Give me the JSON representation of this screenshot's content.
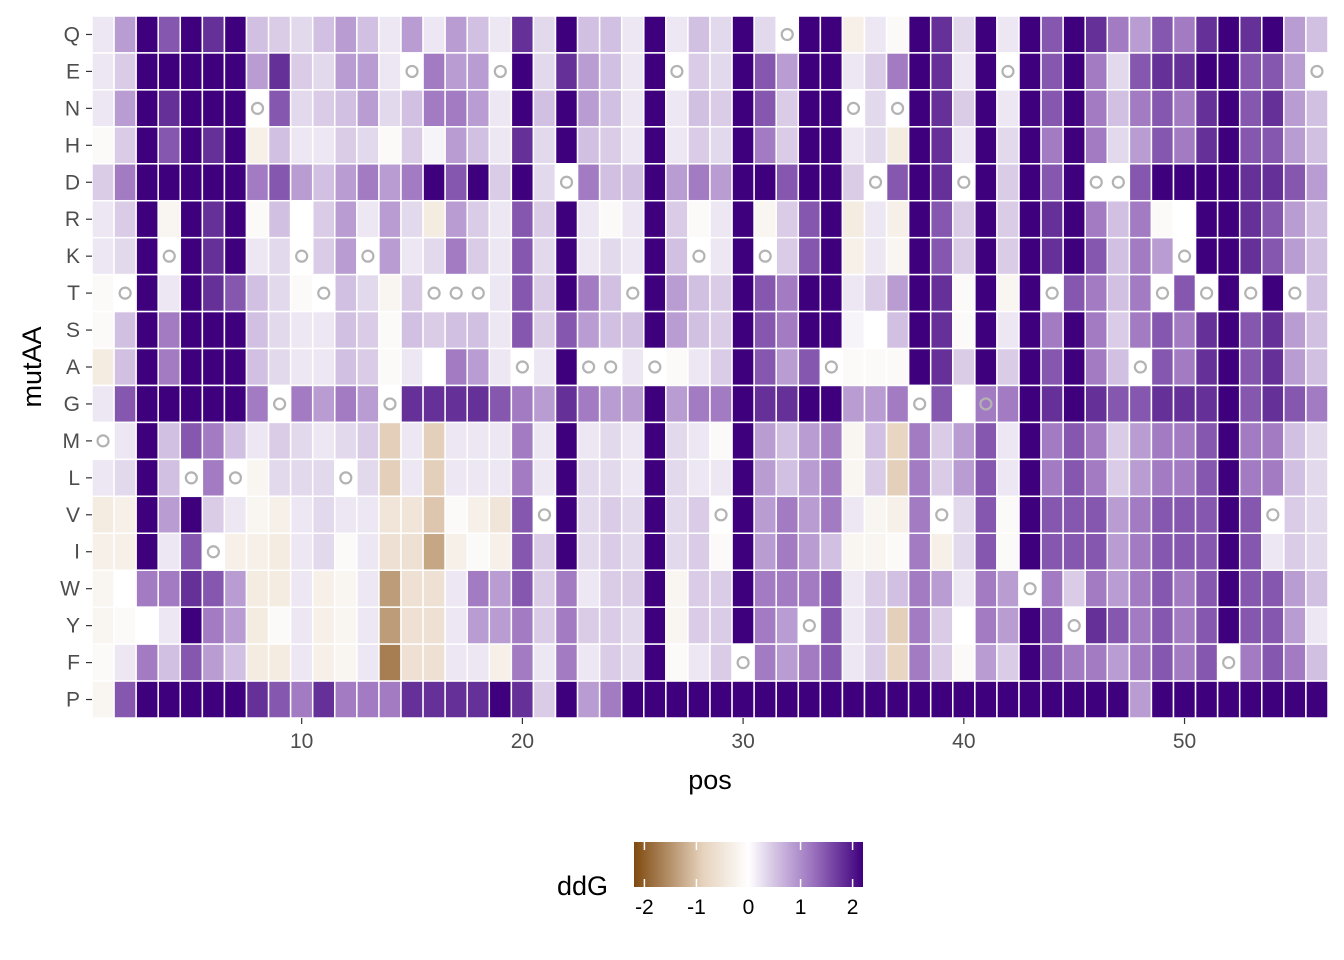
{
  "chart_data": {
    "type": "heatmap",
    "title": "",
    "xlabel": "pos",
    "ylabel": "mutAA",
    "x": [
      1,
      2,
      3,
      4,
      5,
      6,
      7,
      8,
      9,
      10,
      11,
      12,
      13,
      14,
      15,
      16,
      17,
      18,
      19,
      20,
      21,
      22,
      23,
      24,
      25,
      26,
      27,
      28,
      29,
      30,
      31,
      32,
      33,
      34,
      35,
      36,
      37,
      38,
      39,
      40,
      41,
      42,
      43,
      44,
      45,
      46,
      47,
      48,
      49,
      50,
      51,
      52,
      53,
      54,
      55,
      56
    ],
    "y": [
      "Q",
      "E",
      "N",
      "H",
      "D",
      "R",
      "K",
      "T",
      "S",
      "A",
      "G",
      "M",
      "L",
      "V",
      "I",
      "W",
      "Y",
      "F",
      "P"
    ],
    "x_ticks": [
      10,
      20,
      30,
      40,
      50
    ],
    "x_tick_labels": [
      "10",
      "20",
      "30",
      "40",
      "50"
    ],
    "xlim": [
      0.5,
      56.5
    ],
    "legend": {
      "title": "ddG",
      "placement": "bottom",
      "range": [
        -2.2,
        2.2
      ],
      "ticks": [
        -2,
        -1,
        0,
        1,
        2
      ],
      "tick_labels": [
        "-2",
        "-1",
        "0",
        "1",
        "2"
      ],
      "colors": [
        "#7f4a10",
        "#e6d2bd",
        "#ffffff",
        "#d9cbe6",
        "#9c73bf",
        "#3f007d"
      ]
    },
    "native_marker": "open circle at the wild-type residue of each position",
    "native_sequence": {
      "1": "M",
      "2": "T",
      "4": "K",
      "5": "L",
      "6": "I",
      "7": "L",
      "8": "N",
      "9": "G",
      "10": "K",
      "11": "T",
      "12": "L",
      "13": "K",
      "14": "G",
      "15": "E",
      "16": "T",
      "17": "T",
      "18": "T",
      "19": "E",
      "20": "A",
      "21": "V",
      "22": "D",
      "23": "A",
      "24": "A",
      "25": "T",
      "26": "A",
      "27": "E",
      "28": "K",
      "29": "V",
      "30": "F",
      "31": "K",
      "32": "Q",
      "33": "Y",
      "34": "A",
      "35": "N",
      "36": "D",
      "37": "N",
      "38": "G",
      "39": "V",
      "40": "D",
      "41": "G",
      "42": "E",
      "43": "W",
      "44": "T",
      "45": "Y",
      "46": "D",
      "47": "D",
      "48": "A",
      "49": "T",
      "50": "K",
      "51": "T",
      "52": "F",
      "53": "T",
      "54": "V",
      "55": "T",
      "56": "E"
    },
    "values": {
      "Q": [
        0.21,
        0.85,
        2.2,
        1.47,
        2.2,
        1.8,
        2.2,
        0.54,
        0.43,
        0.32,
        0.54,
        0.85,
        0.54,
        0.21,
        0.85,
        0.21,
        0.85,
        0.54,
        0.21,
        1.8,
        0.32,
        2.2,
        0.54,
        0.54,
        0.21,
        2.2,
        0.21,
        0.54,
        0.32,
        2.2,
        0.32,
        0.0,
        2.2,
        2.2,
        -0.3,
        0.21,
        -0.1,
        2.2,
        1.8,
        0.32,
        2.2,
        0.21,
        2.2,
        1.47,
        2.2,
        1.8,
        1.16,
        0.85,
        1.47,
        1.16,
        1.8,
        2.2,
        1.8,
        2.2,
        0.85,
        0.54
      ],
      "E": [
        0.21,
        0.43,
        2.2,
        2.2,
        2.2,
        2.2,
        2.2,
        0.85,
        1.8,
        0.43,
        0.32,
        0.85,
        0.85,
        0.21,
        0.0,
        1.16,
        0.85,
        0.85,
        0.0,
        2.2,
        0.32,
        1.8,
        0.85,
        0.54,
        0.21,
        2.2,
        0.0,
        0.43,
        0.32,
        2.2,
        1.47,
        0.85,
        2.2,
        2.2,
        0.21,
        0.43,
        1.16,
        2.2,
        1.8,
        0.21,
        2.2,
        0.0,
        2.2,
        1.47,
        2.2,
        1.16,
        0.32,
        1.47,
        1.8,
        1.8,
        2.2,
        2.2,
        1.47,
        1.47,
        0.85,
        0.0
      ],
      "N": [
        0.21,
        0.85,
        2.2,
        1.8,
        2.2,
        2.2,
        2.2,
        0.0,
        1.47,
        0.32,
        0.43,
        0.54,
        0.85,
        0.32,
        0.54,
        1.16,
        1.16,
        0.85,
        0.21,
        2.2,
        0.54,
        2.2,
        0.85,
        0.54,
        0.21,
        2.2,
        0.21,
        0.54,
        0.43,
        2.2,
        1.47,
        0.43,
        2.2,
        2.2,
        0.0,
        0.32,
        0.0,
        2.2,
        1.8,
        0.43,
        2.2,
        0.21,
        2.2,
        1.47,
        2.2,
        1.16,
        0.54,
        1.16,
        1.47,
        1.16,
        1.8,
        2.2,
        1.47,
        1.8,
        0.85,
        0.54
      ],
      "H": [
        -0.1,
        0.43,
        2.2,
        1.47,
        2.2,
        1.8,
        2.2,
        -0.3,
        0.54,
        0.21,
        0.21,
        0.43,
        0.32,
        -0.1,
        0.43,
        0.1,
        0.85,
        0.54,
        0.21,
        1.8,
        0.32,
        2.2,
        0.54,
        0.43,
        0.21,
        2.2,
        0.21,
        0.43,
        0.32,
        2.2,
        1.16,
        0.43,
        2.2,
        2.2,
        0.21,
        0.32,
        -0.4,
        2.2,
        1.8,
        0.21,
        2.2,
        0.32,
        2.2,
        1.16,
        2.2,
        1.16,
        0.32,
        0.85,
        1.47,
        1.16,
        1.8,
        2.2,
        1.47,
        1.47,
        0.85,
        0.54
      ],
      "D": [
        0.43,
        1.16,
        2.2,
        2.2,
        2.2,
        2.2,
        2.2,
        1.16,
        1.47,
        0.85,
        0.54,
        0.85,
        1.16,
        0.85,
        1.16,
        2.2,
        1.47,
        2.2,
        0.43,
        2.2,
        0.32,
        0.0,
        1.16,
        0.54,
        0.54,
        2.2,
        0.85,
        1.16,
        0.85,
        2.2,
        2.2,
        1.47,
        2.2,
        2.2,
        0.43,
        0.0,
        1.47,
        2.2,
        1.8,
        0.0,
        2.2,
        0.43,
        2.2,
        1.47,
        2.2,
        0.0,
        0.0,
        1.47,
        2.2,
        2.2,
        2.2,
        2.2,
        1.8,
        1.8,
        1.47,
        0.85
      ],
      "R": [
        0.21,
        0.43,
        2.2,
        -0.2,
        2.2,
        1.8,
        2.2,
        -0.1,
        0.54,
        0.0,
        0.43,
        0.85,
        0.21,
        0.85,
        0.32,
        -0.4,
        0.85,
        0.43,
        0.21,
        1.47,
        0.43,
        2.2,
        0.21,
        -0.1,
        0.21,
        2.2,
        0.43,
        -0.1,
        0.21,
        2.2,
        -0.2,
        0.43,
        1.47,
        2.2,
        -0.4,
        0.21,
        -0.3,
        2.2,
        1.47,
        0.43,
        2.2,
        0.43,
        2.2,
        1.8,
        2.2,
        1.16,
        0.54,
        1.16,
        -0.1,
        0.0,
        2.2,
        2.2,
        1.8,
        1.47,
        0.85,
        0.54
      ],
      "K": [
        0.21,
        0.32,
        2.2,
        0.0,
        2.2,
        1.8,
        2.2,
        0.21,
        0.32,
        0.0,
        0.43,
        0.85,
        0.0,
        0.85,
        0.21,
        0.32,
        1.16,
        0.43,
        0.21,
        1.47,
        0.32,
        2.2,
        0.21,
        0.32,
        0.21,
        2.2,
        0.54,
        0.0,
        0.21,
        2.2,
        0.0,
        0.43,
        1.47,
        2.2,
        -0.3,
        0.21,
        -0.2,
        2.2,
        1.47,
        0.43,
        2.2,
        0.43,
        2.2,
        1.8,
        2.2,
        1.47,
        0.54,
        1.16,
        0.85,
        0.0,
        2.2,
        2.2,
        1.8,
        1.47,
        0.85,
        0.54
      ],
      "T": [
        -0.1,
        0.0,
        2.2,
        0.21,
        2.2,
        1.8,
        1.47,
        0.54,
        0.32,
        -0.1,
        0.0,
        0.54,
        0.32,
        -0.2,
        0.43,
        0.0,
        0.0,
        0.0,
        0.21,
        1.47,
        0.43,
        2.2,
        1.16,
        0.54,
        0.0,
        2.2,
        0.85,
        0.54,
        0.43,
        2.2,
        1.47,
        1.16,
        2.2,
        2.2,
        0.21,
        0.43,
        0.85,
        2.2,
        1.8,
        -0.1,
        2.2,
        -0.2,
        2.2,
        0.0,
        1.47,
        1.16,
        0.54,
        1.16,
        0.0,
        1.47,
        0.0,
        2.2,
        0.0,
        2.2,
        0.0,
        0.54
      ],
      "S": [
        -0.1,
        0.54,
        2.2,
        1.16,
        2.2,
        2.2,
        2.2,
        0.54,
        0.32,
        0.21,
        0.21,
        0.54,
        0.43,
        -0.1,
        0.54,
        0.43,
        0.54,
        0.54,
        0.21,
        1.47,
        0.43,
        1.47,
        0.85,
        0.54,
        0.54,
        2.2,
        0.85,
        0.54,
        0.43,
        2.2,
        1.47,
        1.16,
        2.2,
        2.2,
        0.1,
        0.0,
        0.54,
        2.2,
        1.8,
        -0.1,
        2.2,
        0.21,
        2.2,
        1.16,
        2.2,
        1.16,
        0.43,
        1.16,
        1.47,
        1.16,
        1.8,
        2.2,
        1.47,
        1.8,
        0.85,
        0.54
      ],
      "A": [
        -0.4,
        0.54,
        2.2,
        1.16,
        2.2,
        2.2,
        2.2,
        0.54,
        0.32,
        0.21,
        0.21,
        0.54,
        0.43,
        -0.1,
        0.21,
        0.0,
        1.16,
        0.85,
        0.21,
        0.0,
        0.21,
        2.2,
        0.0,
        0.0,
        0.21,
        0.0,
        -0.1,
        0.21,
        0.43,
        2.2,
        1.47,
        0.85,
        1.47,
        0.0,
        -0.1,
        -0.1,
        -0.1,
        2.2,
        1.8,
        0.43,
        2.2,
        0.43,
        2.2,
        1.47,
        2.2,
        1.16,
        0.54,
        0.0,
        1.47,
        1.16,
        1.8,
        2.2,
        1.47,
        1.8,
        0.85,
        0.54
      ],
      "G": [
        0.21,
        1.47,
        2.2,
        2.2,
        2.2,
        2.2,
        2.2,
        1.16,
        0.0,
        1.16,
        0.85,
        1.16,
        0.85,
        0.0,
        1.8,
        1.8,
        1.8,
        1.8,
        1.47,
        1.16,
        0.85,
        1.8,
        1.16,
        0.85,
        0.85,
        2.2,
        0.85,
        1.16,
        1.16,
        2.2,
        1.8,
        1.8,
        2.2,
        2.2,
        0.85,
        0.85,
        1.16,
        0.0,
        1.47,
        0.0,
        1.16,
        1.16,
        2.2,
        1.8,
        2.2,
        1.8,
        1.47,
        1.47,
        1.8,
        1.8,
        1.8,
        2.2,
        1.47,
        1.8,
        1.47,
        1.16
      ],
      "M": [
        0.0,
        0.21,
        2.2,
        0.54,
        1.47,
        1.16,
        0.54,
        0.21,
        0.43,
        0.32,
        0.21,
        0.32,
        0.43,
        -0.9,
        0.21,
        -0.9,
        0.21,
        0.21,
        0.21,
        1.16,
        0.21,
        2.2,
        0.21,
        0.32,
        0.21,
        2.2,
        0.32,
        0.21,
        -0.1,
        2.2,
        0.85,
        0.54,
        0.85,
        1.16,
        -0.2,
        0.54,
        -0.8,
        1.16,
        0.43,
        0.85,
        1.47,
        0.21,
        2.2,
        1.16,
        1.47,
        1.16,
        0.43,
        0.85,
        1.16,
        1.16,
        1.47,
        2.2,
        1.16,
        1.16,
        0.54,
        0.32
      ],
      "L": [
        0.21,
        0.32,
        2.2,
        0.54,
        0.0,
        1.16,
        0.0,
        -0.2,
        0.32,
        0.32,
        0.32,
        0.0,
        0.32,
        -0.9,
        0.21,
        -0.9,
        0.21,
        0.21,
        0.21,
        1.16,
        0.21,
        2.2,
        0.32,
        0.32,
        0.21,
        2.2,
        0.32,
        0.21,
        0.21,
        2.2,
        0.85,
        0.54,
        0.85,
        1.16,
        -0.2,
        0.43,
        -0.9,
        1.16,
        0.43,
        0.85,
        1.47,
        0.21,
        2.2,
        1.16,
        1.47,
        1.16,
        0.43,
        0.85,
        1.16,
        1.16,
        1.47,
        2.2,
        1.16,
        1.16,
        0.54,
        0.32
      ],
      "V": [
        -0.4,
        -0.3,
        2.2,
        0.85,
        2.2,
        0.43,
        0.21,
        -0.2,
        -0.3,
        0.21,
        0.32,
        0.21,
        0.21,
        -0.5,
        -0.5,
        -1.0,
        -0.1,
        -0.3,
        -0.5,
        1.47,
        0.0,
        2.2,
        0.32,
        0.43,
        0.32,
        2.2,
        0.32,
        0.43,
        0.0,
        2.2,
        0.85,
        1.16,
        0.85,
        1.16,
        0.21,
        -0.2,
        -0.3,
        1.16,
        0.0,
        0.32,
        1.47,
        -0.1,
        2.2,
        1.47,
        1.47,
        1.47,
        0.85,
        1.16,
        1.47,
        1.47,
        1.47,
        2.2,
        1.47,
        0.0,
        0.43,
        0.32
      ],
      "I": [
        -0.3,
        -0.3,
        2.2,
        0.21,
        1.47,
        0.0,
        -0.3,
        -0.3,
        -0.4,
        0.21,
        0.32,
        -0.1,
        0.21,
        -0.6,
        -0.6,
        -1.3,
        -0.3,
        -0.1,
        -0.3,
        1.47,
        0.43,
        2.2,
        0.32,
        0.43,
        0.32,
        2.2,
        0.32,
        0.43,
        -0.1,
        2.2,
        0.85,
        1.16,
        0.85,
        0.54,
        -0.2,
        -0.2,
        -0.1,
        1.16,
        -0.3,
        0.32,
        1.47,
        -0.1,
        2.2,
        1.47,
        1.47,
        1.47,
        0.85,
        1.16,
        1.47,
        1.47,
        1.47,
        2.2,
        1.47,
        0.21,
        0.43,
        0.32
      ],
      "W": [
        -0.2,
        0.0,
        1.16,
        1.16,
        1.8,
        1.47,
        0.85,
        -0.4,
        -0.4,
        0.21,
        -0.3,
        -0.2,
        0.21,
        -1.4,
        -0.6,
        -0.6,
        0.21,
        1.16,
        0.85,
        1.47,
        0.43,
        1.16,
        0.21,
        0.43,
        0.43,
        2.2,
        -0.2,
        0.43,
        0.43,
        2.2,
        1.16,
        1.16,
        1.16,
        1.47,
        0.21,
        0.43,
        0.54,
        1.16,
        0.85,
        0.21,
        1.16,
        0.85,
        0.0,
        1.16,
        0.43,
        1.16,
        0.85,
        1.16,
        1.47,
        1.16,
        1.47,
        2.2,
        1.47,
        1.47,
        0.85,
        0.54
      ],
      "Y": [
        -0.2,
        -0.1,
        0.0,
        0.21,
        2.2,
        1.16,
        0.85,
        -0.4,
        -0.1,
        0.21,
        -0.3,
        -0.2,
        0.21,
        -1.4,
        -0.6,
        -0.6,
        0.21,
        0.85,
        0.85,
        1.16,
        0.43,
        1.16,
        0.43,
        0.43,
        0.32,
        2.2,
        -0.2,
        0.43,
        0.43,
        2.2,
        1.16,
        0.85,
        0.0,
        1.47,
        0.21,
        0.43,
        -0.9,
        1.16,
        0.43,
        0.0,
        1.16,
        0.85,
        2.2,
        1.47,
        0.0,
        1.8,
        1.47,
        1.16,
        1.47,
        1.16,
        1.47,
        2.2,
        1.47,
        1.47,
        0.85,
        0.21
      ],
      "F": [
        -0.1,
        0.21,
        1.16,
        0.54,
        1.47,
        0.85,
        0.54,
        -0.4,
        -0.4,
        0.21,
        -0.3,
        -0.2,
        0.21,
        -1.7,
        -0.6,
        -0.6,
        0.21,
        0.21,
        -0.3,
        1.16,
        0.21,
        1.16,
        0.21,
        0.43,
        0.32,
        2.2,
        -0.1,
        0.21,
        0.43,
        0.0,
        1.16,
        0.85,
        1.16,
        1.47,
        0.21,
        0.43,
        -0.8,
        1.16,
        0.43,
        -0.1,
        0.85,
        0.43,
        2.2,
        1.47,
        1.16,
        1.16,
        0.85,
        1.16,
        1.47,
        1.16,
        1.47,
        0.0,
        1.16,
        1.47,
        1.16,
        0.54
      ],
      "P": [
        -0.2,
        1.47,
        2.2,
        2.2,
        2.2,
        2.2,
        2.2,
        1.8,
        1.47,
        1.16,
        1.8,
        1.16,
        1.16,
        1.16,
        1.8,
        1.8,
        1.8,
        1.8,
        2.2,
        1.8,
        0.43,
        2.2,
        0.85,
        1.16,
        2.2,
        2.2,
        2.2,
        2.2,
        2.2,
        2.2,
        2.2,
        2.2,
        2.2,
        2.2,
        2.2,
        2.2,
        2.2,
        2.2,
        2.2,
        2.2,
        2.2,
        2.2,
        2.2,
        2.2,
        2.2,
        2.2,
        2.2,
        0.85,
        2.2,
        2.2,
        2.2,
        2.2,
        2.2,
        2.2,
        2.2,
        2.2
      ]
    }
  }
}
